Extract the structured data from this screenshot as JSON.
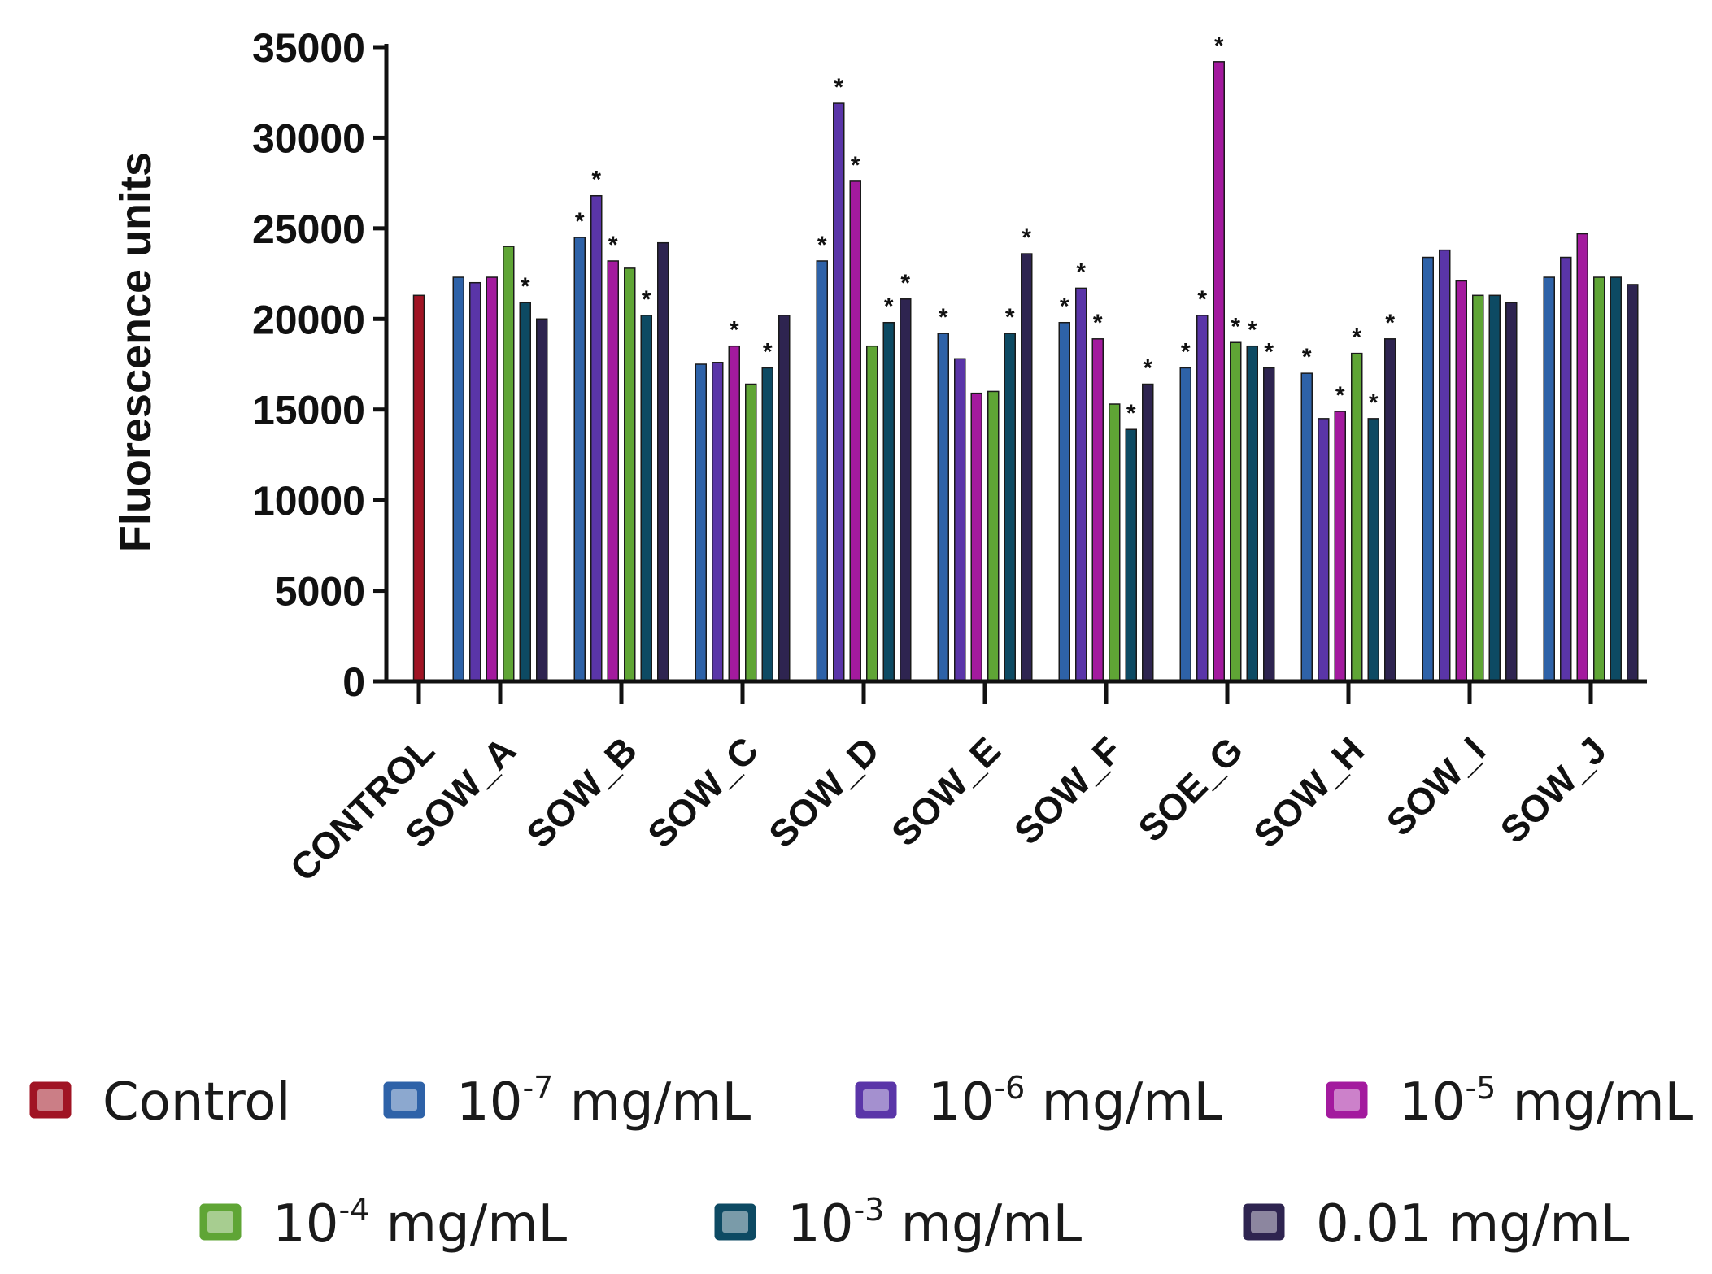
{
  "chart_data": {
    "type": "bar",
    "title": "",
    "xlabel": "",
    "ylabel": "Fluorescence units",
    "ylim": [
      0,
      35000
    ],
    "yticks": [
      0,
      5000,
      10000,
      15000,
      20000,
      25000,
      30000,
      35000
    ],
    "grid": false,
    "legend_position": "bottom",
    "categories": [
      "CONTROL",
      "SOW_A",
      "SOW_B",
      "SOW_C",
      "SOW_D",
      "SOW_E",
      "SOW_F",
      "SOE_G",
      "SOW_H",
      "SOW_I",
      "SOW_J"
    ],
    "series": [
      {
        "name": "Control",
        "color": "#a01424",
        "values": [
          21300,
          null,
          null,
          null,
          null,
          null,
          null,
          null,
          null,
          null,
          null
        ],
        "significant": [
          false,
          null,
          null,
          null,
          null,
          null,
          null,
          null,
          null,
          null,
          null
        ]
      },
      {
        "name": "10-7 mg/mL",
        "label_base": "10",
        "label_exp": "-7",
        "label_unit": "mg/mL",
        "color": "#2e62a8",
        "values": [
          null,
          22300,
          24500,
          17500,
          23200,
          19200,
          19800,
          17300,
          17000,
          23400,
          22300
        ],
        "significant": [
          null,
          false,
          true,
          false,
          true,
          true,
          true,
          true,
          true,
          false,
          false
        ]
      },
      {
        "name": "10-6 mg/mL",
        "label_base": "10",
        "label_exp": "-6",
        "label_unit": "mg/mL",
        "color": "#5a35a8",
        "values": [
          null,
          22000,
          26800,
          17600,
          31900,
          17800,
          21700,
          20200,
          14500,
          23800,
          23400
        ],
        "significant": [
          null,
          false,
          true,
          false,
          true,
          false,
          true,
          true,
          false,
          false,
          false
        ]
      },
      {
        "name": "10-5 mg/mL",
        "label_base": "10",
        "label_exp": "-5",
        "label_unit": "mg/mL",
        "color": "#a31a9e",
        "values": [
          null,
          22300,
          23200,
          18500,
          27600,
          15900,
          18900,
          34200,
          14900,
          22100,
          24700
        ],
        "significant": [
          null,
          false,
          true,
          true,
          true,
          false,
          true,
          true,
          true,
          false,
          false
        ]
      },
      {
        "name": "10-4 mg/mL",
        "label_base": "10",
        "label_exp": "-4",
        "label_unit": "mg/mL",
        "color": "#5fa535",
        "values": [
          null,
          24000,
          22800,
          16400,
          18500,
          16000,
          15300,
          18700,
          18100,
          21300,
          22300
        ],
        "significant": [
          null,
          false,
          false,
          false,
          false,
          false,
          false,
          true,
          true,
          false,
          false
        ]
      },
      {
        "name": "10-3 mg/mL",
        "label_base": "10",
        "label_exp": "-3",
        "label_unit": "mg/mL",
        "color": "#0d4a63",
        "values": [
          null,
          20900,
          20200,
          17300,
          19800,
          19200,
          13900,
          18500,
          14500,
          21300,
          22300
        ],
        "significant": [
          null,
          true,
          true,
          true,
          true,
          true,
          true,
          true,
          true,
          false,
          false
        ]
      },
      {
        "name": "0.01 mg/mL",
        "label_base": "0.01",
        "label_exp": "",
        "label_unit": "mg/mL",
        "color": "#2e2450",
        "values": [
          null,
          20000,
          24200,
          20200,
          21100,
          23600,
          16400,
          17300,
          18900,
          20900,
          21900
        ],
        "significant": [
          null,
          false,
          false,
          false,
          true,
          true,
          true,
          true,
          true,
          false,
          false
        ]
      }
    ],
    "significance_marker": "*"
  }
}
